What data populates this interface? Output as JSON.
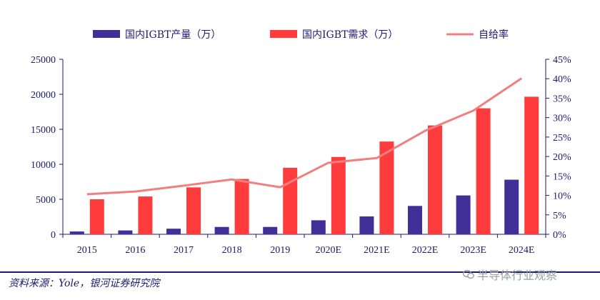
{
  "chart_data": {
    "type": "bar",
    "categories": [
      "2015",
      "2016",
      "2017",
      "2018",
      "2019",
      "2020E",
      "2021E",
      "2022E",
      "2023E",
      "2024E"
    ],
    "series": [
      {
        "name": "国内IGBT产量（万）",
        "kind": "bar",
        "axis": "left",
        "color": "#3f2f96",
        "values": [
          400,
          550,
          800,
          1050,
          1050,
          2000,
          2550,
          4050,
          5550,
          7800
        ]
      },
      {
        "name": "国内IGBT需求（万）",
        "kind": "bar",
        "axis": "left",
        "color": "#ff3b3b",
        "values": [
          5000,
          5400,
          6700,
          7900,
          9500,
          11050,
          13250,
          15550,
          18000,
          19650
        ]
      },
      {
        "name": "自给率",
        "kind": "line",
        "axis": "right",
        "color": "#f08080",
        "values": [
          10.3,
          11.0,
          12.5,
          14.1,
          12.1,
          18.4,
          19.6,
          26.6,
          31.8,
          40.1
        ]
      }
    ],
    "yleft": {
      "min": 0,
      "max": 25000,
      "ticks": [
        "0",
        "5000",
        "10000",
        "15000",
        "20000",
        "25000"
      ]
    },
    "yright": {
      "min": 0,
      "max": 45,
      "ticks": [
        "0%",
        "5%",
        "10%",
        "15%",
        "20%",
        "25%",
        "30%",
        "35%",
        "40%",
        "45%"
      ]
    },
    "grid": false,
    "legend_position": "top"
  },
  "source": "资料来源：Yole，银河证券研究院",
  "watermark": "半导体行业观察"
}
